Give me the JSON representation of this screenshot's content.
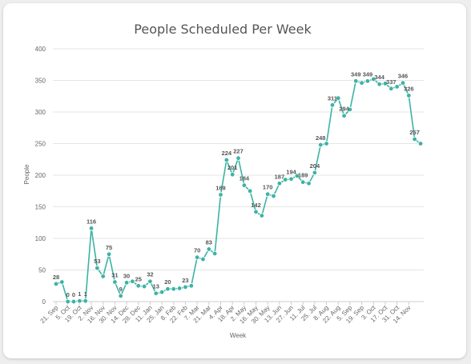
{
  "chart_data": {
    "type": "line",
    "title": "People Scheduled Per Week",
    "xlabel": "Week",
    "ylabel": "People",
    "ylim": [
      0,
      400
    ],
    "yticks": [
      0,
      50,
      100,
      150,
      200,
      250,
      300,
      350,
      400
    ],
    "grid": true,
    "legend": "none",
    "color": "#3bb3a5",
    "x_tick_labels": [
      "21. Sep",
      "5. Oct",
      "19. Oct",
      "2. Nov",
      "16. Nov",
      "30. Nov",
      "14. Dec",
      "28. Dec",
      "11. Jan",
      "25. Jan",
      "8. Feb",
      "22. Feb",
      "7. Mar",
      "21. Mar",
      "4. Apr",
      "18. Apr",
      "2. May",
      "16. May",
      "30. May",
      "13. Jun",
      "27. Jun",
      "11. Jul",
      "25. Jul",
      "8. Aug",
      "22. Aug",
      "5. Sep",
      "19. Sep",
      "3. Oct",
      "17. Oct",
      "31. Oct",
      "14. Nov"
    ],
    "series": [
      {
        "values": [
          28,
          31,
          0,
          0,
          1,
          1,
          116,
          53,
          40,
          75,
          31,
          9,
          30,
          32,
          25,
          24,
          32,
          13,
          15,
          20,
          20,
          21,
          23,
          25,
          70,
          67,
          83,
          76,
          169,
          224,
          201,
          227,
          184,
          175,
          142,
          136,
          170,
          167,
          187,
          193,
          194,
          199,
          189,
          187,
          204,
          248,
          250,
          311,
          322,
          294,
          304,
          349,
          346,
          349,
          352,
          344,
          345,
          337,
          340,
          346,
          326,
          257,
          250
        ],
        "labels": [
          "28",
          "",
          "0",
          "0",
          "1",
          "1",
          "116",
          "53",
          "",
          "75",
          "31",
          "9",
          "30",
          "",
          "25",
          "",
          "32",
          "13",
          "",
          "20",
          "",
          "",
          "23",
          "",
          "70",
          "",
          "83",
          "",
          "169",
          "224",
          "201",
          "227",
          "184",
          "",
          "142",
          "",
          "170",
          "",
          "187",
          "",
          "194",
          "",
          "189",
          "",
          "204",
          "248",
          "",
          "311",
          "",
          "294",
          "",
          "349",
          "",
          "349",
          "",
          "344",
          "",
          "337",
          "",
          "346",
          "326",
          "257",
          ""
        ]
      }
    ]
  }
}
